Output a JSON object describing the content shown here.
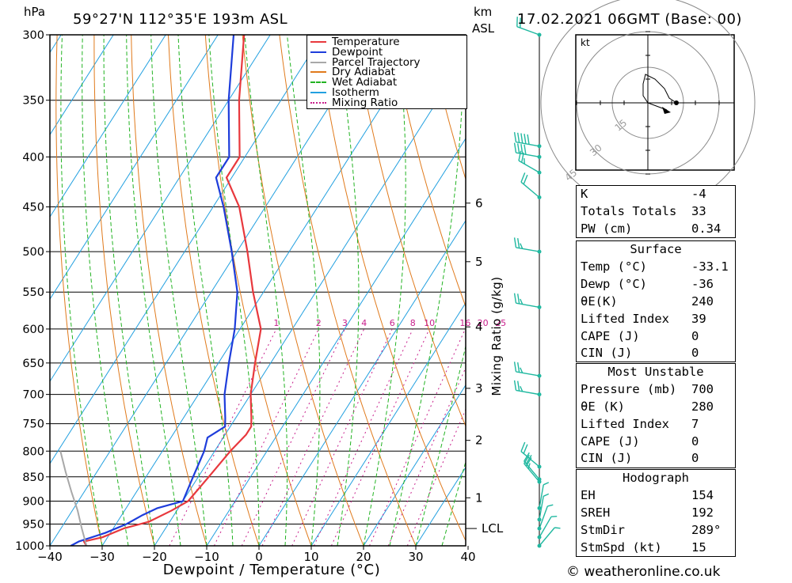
{
  "header": {
    "pressure_unit": "hPa",
    "location": "59°27'N  112°35'E  193m  ASL",
    "km_label": "km",
    "asl_label": "ASL",
    "datetime": "17.02.2021  06GMT  (Base: 00)"
  },
  "footer": {
    "credit": "© weatheronline.co.uk"
  },
  "colors": {
    "temperature": "#e8383d",
    "dewpoint": "#1e3ddb",
    "parcel": "#a8a8a8",
    "dry_adiabat": "#e07a1c",
    "wet_adiabat": "#22b322",
    "isotherm": "#22a0e0",
    "mixing_ratio": "#c8208c",
    "wind": "#20b8a0"
  },
  "hodograph": {
    "unit_label": "kt",
    "ring_labels": [
      "15",
      "30",
      "45"
    ]
  },
  "indices": {
    "general": [
      {
        "k": "K",
        "v": "-4"
      },
      {
        "k": "Totals Totals",
        "v": "33"
      },
      {
        "k": "PW (cm)",
        "v": "0.34"
      }
    ],
    "surface": {
      "title": "Surface",
      "rows": [
        {
          "k": "Temp (°C)",
          "v": "-33.1"
        },
        {
          "k": "Dewp (°C)",
          "v": "-36"
        },
        {
          "k": "θE(K)",
          "v": "240"
        },
        {
          "k": "Lifted Index",
          "v": "39"
        },
        {
          "k": "CAPE (J)",
          "v": "0"
        },
        {
          "k": "CIN (J)",
          "v": "0"
        }
      ]
    },
    "most_unstable": {
      "title": "Most Unstable",
      "rows": [
        {
          "k": "Pressure (mb)",
          "v": "700"
        },
        {
          "k": "θE (K)",
          "v": "280"
        },
        {
          "k": "Lifted Index",
          "v": "7"
        },
        {
          "k": "CAPE (J)",
          "v": "0"
        },
        {
          "k": "CIN (J)",
          "v": "0"
        }
      ]
    },
    "hodograph": {
      "title": "Hodograph",
      "rows": [
        {
          "k": "EH",
          "v": "154"
        },
        {
          "k": "SREH",
          "v": "192"
        },
        {
          "k": "StmDir",
          "v": "289°"
        },
        {
          "k": "StmSpd (kt)",
          "v": "15"
        }
      ]
    }
  },
  "chart_data": {
    "type": "line",
    "subtype": "skew-T log-P diagram",
    "xlabel": "Dewpoint / Temperature (°C)",
    "ylabel": "hPa",
    "right_axis_label": "Mixing Ratio (g/kg)",
    "xlim": [
      -40,
      40
    ],
    "x_ticks": [
      -40,
      -30,
      -20,
      -10,
      0,
      10,
      20,
      30,
      40
    ],
    "pressure_ticks": [
      300,
      350,
      400,
      450,
      500,
      550,
      600,
      650,
      700,
      750,
      800,
      850,
      900,
      950,
      1000
    ],
    "height_ticks_km": [
      {
        "label": "6",
        "p": 446
      },
      {
        "label": "5",
        "p": 512
      },
      {
        "label": "4",
        "p": 597
      },
      {
        "label": "3",
        "p": 690
      },
      {
        "label": "2",
        "p": 780
      },
      {
        "label": "1",
        "p": 893
      }
    ],
    "lcl": {
      "label": "LCL",
      "p": 960
    },
    "mixing_ratio_labels": [
      "1",
      "2",
      "3",
      "4",
      "6",
      "8",
      "10",
      "16",
      "20",
      "25"
    ],
    "mixing_ratio_values": [
      1,
      2,
      3,
      4,
      6,
      8,
      10,
      16,
      20,
      25
    ],
    "legend": {
      "placement": "top-right",
      "entries": [
        "Temperature",
        "Dewpoint",
        "Parcel Trajectory",
        "Dry Adiabat",
        "Wet Adiabat",
        "Isotherm",
        "Mixing Ratio"
      ]
    },
    "series": [
      {
        "name": "Temperature",
        "points": [
          [
            1000,
            -33
          ],
          [
            990,
            -34
          ],
          [
            980,
            -31
          ],
          [
            960,
            -28
          ],
          [
            945,
            -24
          ],
          [
            920,
            -21
          ],
          [
            900,
            -19
          ],
          [
            850,
            -18
          ],
          [
            800,
            -17
          ],
          [
            770,
            -16
          ],
          [
            755,
            -16
          ],
          [
            740,
            -17
          ],
          [
            700,
            -20
          ],
          [
            650,
            -23
          ],
          [
            600,
            -26
          ],
          [
            550,
            -32
          ],
          [
            500,
            -38
          ],
          [
            450,
            -45
          ],
          [
            420,
            -51
          ],
          [
            400,
            -51
          ],
          [
            350,
            -58
          ],
          [
            300,
            -65
          ]
        ]
      },
      {
        "name": "Dewpoint",
        "points": [
          [
            1000,
            -36
          ],
          [
            990,
            -35
          ],
          [
            970,
            -31
          ],
          [
            950,
            -28
          ],
          [
            930,
            -26
          ],
          [
            915,
            -24
          ],
          [
            900,
            -20
          ],
          [
            850,
            -21
          ],
          [
            800,
            -22
          ],
          [
            775,
            -23
          ],
          [
            755,
            -21
          ],
          [
            740,
            -22
          ],
          [
            700,
            -25
          ],
          [
            650,
            -28
          ],
          [
            600,
            -31
          ],
          [
            550,
            -35
          ],
          [
            500,
            -41
          ],
          [
            450,
            -48
          ],
          [
            420,
            -53
          ],
          [
            400,
            -53
          ],
          [
            350,
            -60
          ],
          [
            300,
            -67
          ]
        ]
      },
      {
        "name": "Parcel Trajectory",
        "points": [
          [
            1000,
            -33
          ],
          [
            960,
            -36
          ],
          [
            920,
            -39
          ],
          [
            880,
            -42.5
          ],
          [
            840,
            -46
          ],
          [
            800,
            -49.5
          ]
        ]
      }
    ],
    "wind_profile": [
      {
        "p": 300,
        "dir": 290,
        "spd": 20
      },
      {
        "p": 390,
        "dir": 280,
        "spd": 50
      },
      {
        "p": 400,
        "dir": 280,
        "spd": 40
      },
      {
        "p": 415,
        "dir": 300,
        "spd": 25
      },
      {
        "p": 440,
        "dir": 310,
        "spd": 20
      },
      {
        "p": 500,
        "dir": 280,
        "spd": 25
      },
      {
        "p": 570,
        "dir": 280,
        "spd": 25
      },
      {
        "p": 670,
        "dir": 280,
        "spd": 25
      },
      {
        "p": 700,
        "dir": 280,
        "spd": 25
      },
      {
        "p": 830,
        "dir": 310,
        "spd": 20
      },
      {
        "p": 855,
        "dir": 320,
        "spd": 20
      },
      {
        "p": 860,
        "dir": 320,
        "spd": 25
      },
      {
        "p": 915,
        "dir": 10,
        "spd": 5
      },
      {
        "p": 940,
        "dir": 10,
        "spd": 5
      },
      {
        "p": 960,
        "dir": 20,
        "spd": 5
      },
      {
        "p": 980,
        "dir": 30,
        "spd": 5
      },
      {
        "p": 1000,
        "dir": 40,
        "spd": 5
      }
    ],
    "hodograph_points": [
      [
        0,
        0
      ],
      [
        -2,
        3
      ],
      [
        -2,
        8
      ],
      [
        -1,
        12
      ],
      [
        3,
        10
      ],
      [
        7,
        6
      ],
      [
        9,
        2
      ],
      [
        12,
        0
      ]
    ],
    "storm_motion": {
      "dir": 289,
      "spd": 15
    }
  }
}
